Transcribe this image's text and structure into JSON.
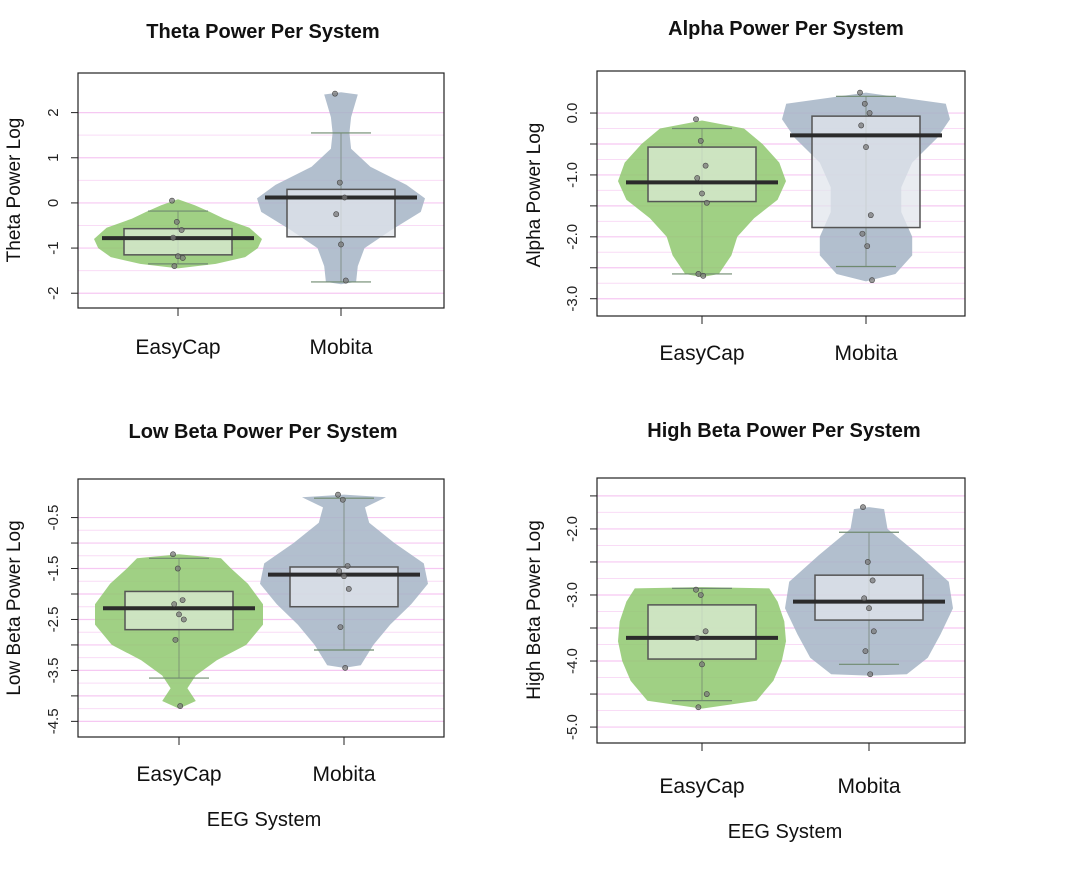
{
  "figure": {
    "xlabel": "EEG System"
  },
  "chart_data": [
    {
      "type": "violin",
      "title": "Theta Power Per System",
      "xlabel": "",
      "ylabel": "Theta Power Log",
      "ylim": [
        -2.15,
        2.7
      ],
      "yticks": [
        -2,
        -1,
        0,
        1,
        2
      ],
      "yticklabels": [
        "-2",
        "-1",
        "0",
        "1",
        "2"
      ],
      "grid": true,
      "categories": [
        "EasyCap",
        "Mobita"
      ],
      "series": [
        {
          "category": "EasyCap",
          "color": "#8fc86f",
          "box_color": "#dcebd6",
          "median": -0.78,
          "q1": -1.15,
          "q3": -0.57,
          "whisker_low": -1.35,
          "whisker_high": -0.18,
          "points": [
            0.05,
            -0.42,
            -0.6,
            -0.77,
            -1.18,
            -1.22,
            -1.4
          ],
          "density": [
            [
              -1.45,
              0.0
            ],
            [
              -1.35,
              0.45
            ],
            [
              -1.2,
              0.8
            ],
            [
              -1.0,
              0.95
            ],
            [
              -0.8,
              1.0
            ],
            [
              -0.55,
              0.85
            ],
            [
              -0.35,
              0.55
            ],
            [
              -0.2,
              0.38
            ],
            [
              -0.05,
              0.2
            ],
            [
              0.08,
              0.0
            ]
          ]
        },
        {
          "category": "Mobita",
          "color": "#a5b4c6",
          "box_color": "#e2e6ec",
          "median": 0.12,
          "q1": -0.75,
          "q3": 0.3,
          "whisker_low": -1.75,
          "whisker_high": 1.55,
          "points": [
            2.42,
            0.45,
            0.12,
            -0.25,
            -0.92,
            -1.72
          ],
          "density": [
            [
              -1.8,
              0.0
            ],
            [
              -1.75,
              0.18
            ],
            [
              -1.4,
              0.2
            ],
            [
              -1.0,
              0.28
            ],
            [
              -0.6,
              0.6
            ],
            [
              -0.2,
              0.95
            ],
            [
              0.1,
              1.0
            ],
            [
              0.4,
              0.78
            ],
            [
              0.8,
              0.35
            ],
            [
              1.2,
              0.12
            ],
            [
              1.55,
              0.1
            ],
            [
              1.9,
              0.12
            ],
            [
              2.4,
              0.2
            ],
            [
              2.45,
              0.0
            ]
          ]
        }
      ]
    },
    {
      "type": "violin",
      "title": "Alpha Power Per System",
      "xlabel": "",
      "ylabel": "Alpha Power Log",
      "ylim": [
        -3.15,
        0.55
      ],
      "yticks": [
        0,
        -0.5,
        -1,
        -1.5,
        -2,
        -2.5,
        -3
      ],
      "yticklabels": [
        "0.0",
        "",
        "-1.0",
        "",
        "-2.0",
        "",
        "-3.0"
      ],
      "grid": true,
      "categories": [
        "EasyCap",
        "Mobita"
      ],
      "series": [
        {
          "category": "EasyCap",
          "color": "#8fc86f",
          "box_color": "#dcebd6",
          "median": -1.12,
          "q1": -1.43,
          "q3": -0.55,
          "whisker_low": -2.6,
          "whisker_high": -0.25,
          "points": [
            -0.1,
            -0.45,
            -0.85,
            -1.05,
            -1.3,
            -1.45,
            -2.6,
            -2.63
          ],
          "density": [
            [
              -2.65,
              0.0
            ],
            [
              -2.6,
              0.2
            ],
            [
              -2.3,
              0.35
            ],
            [
              -2.0,
              0.42
            ],
            [
              -1.7,
              0.62
            ],
            [
              -1.4,
              0.9
            ],
            [
              -1.1,
              1.0
            ],
            [
              -0.8,
              0.92
            ],
            [
              -0.5,
              0.72
            ],
            [
              -0.25,
              0.5
            ],
            [
              -0.12,
              0.0
            ]
          ]
        },
        {
          "category": "Mobita",
          "color": "#a5b4c6",
          "box_color": "#e2e6ec",
          "median": -0.36,
          "q1": -1.85,
          "q3": -0.05,
          "whisker_low": -2.48,
          "whisker_high": 0.27,
          "points": [
            0.33,
            0.15,
            0.0,
            -0.2,
            -0.55,
            -1.65,
            -1.95,
            -2.15,
            -2.7
          ],
          "density": [
            [
              -2.72,
              0.0
            ],
            [
              -2.6,
              0.35
            ],
            [
              -2.3,
              0.55
            ],
            [
              -2.0,
              0.55
            ],
            [
              -1.6,
              0.42
            ],
            [
              -1.2,
              0.42
            ],
            [
              -0.8,
              0.55
            ],
            [
              -0.4,
              0.85
            ],
            [
              -0.1,
              1.0
            ],
            [
              0.15,
              0.95
            ],
            [
              0.33,
              0.0
            ]
          ]
        }
      ]
    },
    {
      "type": "violin",
      "title": "Low Beta Power Per System",
      "xlabel": "EEG System",
      "ylabel": "Low Beta Power Log",
      "ylim": [
        -4.65,
        0.1
      ],
      "yticks": [
        -0.5,
        -1,
        -1.5,
        -2,
        -2.5,
        -3,
        -3.5,
        -4,
        -4.5
      ],
      "yticklabels": [
        "-0.5",
        "",
        "-1.5",
        "",
        "-2.5",
        "",
        "-3.5",
        "",
        "-4.5"
      ],
      "grid": true,
      "categories": [
        "EasyCap",
        "Mobita"
      ],
      "series": [
        {
          "category": "EasyCap",
          "color": "#8fc86f",
          "box_color": "#dcebd6",
          "median": -2.28,
          "q1": -2.7,
          "q3": -1.95,
          "whisker_low": -3.65,
          "whisker_high": -1.3,
          "points": [
            -1.22,
            -1.5,
            -2.12,
            -2.2,
            -2.4,
            -2.5,
            -2.9,
            -4.2
          ],
          "density": [
            [
              -4.25,
              0.0
            ],
            [
              -4.1,
              0.2
            ],
            [
              -3.85,
              0.1
            ],
            [
              -3.6,
              0.2
            ],
            [
              -3.3,
              0.45
            ],
            [
              -3.0,
              0.8
            ],
            [
              -2.6,
              1.0
            ],
            [
              -2.2,
              1.0
            ],
            [
              -1.8,
              0.82
            ],
            [
              -1.5,
              0.62
            ],
            [
              -1.3,
              0.5
            ],
            [
              -1.22,
              0.0
            ]
          ]
        },
        {
          "category": "Mobita",
          "color": "#a5b4c6",
          "box_color": "#e2e6ec",
          "median": -1.62,
          "q1": -2.25,
          "q3": -1.47,
          "whisker_low": -3.1,
          "whisker_high": -0.12,
          "points": [
            -0.05,
            -0.15,
            -1.45,
            -1.55,
            -1.65,
            -1.9,
            -2.65,
            -3.45
          ],
          "density": [
            [
              -3.45,
              0.0
            ],
            [
              -3.4,
              0.2
            ],
            [
              -3.0,
              0.35
            ],
            [
              -2.6,
              0.55
            ],
            [
              -2.2,
              0.8
            ],
            [
              -1.8,
              1.0
            ],
            [
              -1.4,
              0.95
            ],
            [
              -1.0,
              0.6
            ],
            [
              -0.6,
              0.3
            ],
            [
              -0.3,
              0.25
            ],
            [
              -0.1,
              0.5
            ],
            [
              -0.05,
              0.0
            ]
          ]
        }
      ]
    },
    {
      "type": "violin",
      "title": "High Beta Power Per System",
      "xlabel": "EEG System",
      "ylabel": "High Beta Power Log",
      "ylim": [
        -5.12,
        -1.35
      ],
      "yticks": [
        -1.5,
        -2,
        -2.5,
        -3,
        -3.5,
        -4,
        -4.5,
        -5
      ],
      "yticklabels": [
        "",
        "-2.0",
        "",
        "-3.0",
        "",
        "-4.0",
        "",
        "-5.0"
      ],
      "grid": true,
      "categories": [
        "EasyCap",
        "Mobita"
      ],
      "series": [
        {
          "category": "EasyCap",
          "color": "#8fc86f",
          "box_color": "#dcebd6",
          "median": -3.65,
          "q1": -3.97,
          "q3": -3.15,
          "whisker_low": -4.6,
          "whisker_high": -2.9,
          "points": [
            -2.92,
            -3.0,
            -3.55,
            -3.65,
            -4.05,
            -4.5,
            -4.7
          ],
          "density": [
            [
              -4.72,
              0.0
            ],
            [
              -4.6,
              0.65
            ],
            [
              -4.3,
              0.85
            ],
            [
              -4.0,
              0.95
            ],
            [
              -3.7,
              1.0
            ],
            [
              -3.4,
              0.98
            ],
            [
              -3.1,
              0.9
            ],
            [
              -2.9,
              0.8
            ],
            [
              -2.88,
              0.0
            ]
          ]
        },
        {
          "category": "Mobita",
          "color": "#a5b4c6",
          "box_color": "#e2e6ec",
          "median": -3.1,
          "q1": -3.38,
          "q3": -2.7,
          "whisker_low": -4.05,
          "whisker_high": -2.05,
          "points": [
            -1.67,
            -2.5,
            -2.78,
            -3.05,
            -3.2,
            -3.55,
            -3.85,
            -4.2
          ],
          "density": [
            [
              -4.22,
              0.0
            ],
            [
              -4.2,
              0.45
            ],
            [
              -3.95,
              0.7
            ],
            [
              -3.6,
              0.85
            ],
            [
              -3.2,
              1.0
            ],
            [
              -2.8,
              0.95
            ],
            [
              -2.4,
              0.6
            ],
            [
              -2.0,
              0.22
            ],
            [
              -1.7,
              0.18
            ],
            [
              -1.67,
              0.0
            ]
          ]
        }
      ]
    }
  ]
}
